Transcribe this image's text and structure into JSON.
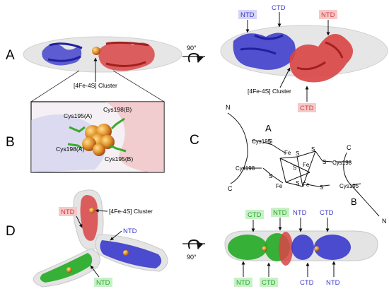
{
  "panels": {
    "A": {
      "letter": "A",
      "rotation": "90°",
      "cluster_left": "[4Fe-4S] Cluster",
      "cluster_right": "[4Fe-4S] Cluster",
      "ntd_left": "NTD",
      "ctd_top": "CTD",
      "ntd_right": "NTD",
      "ctd_bottom": "CTD"
    },
    "B": {
      "letter": "B",
      "cys195a": "Cys195(A)",
      "cys198b": "Cys198(B)",
      "cys198a": "Cys198(A)",
      "cys195b": "Cys195(B)"
    },
    "C": {
      "letter": "C",
      "chain_a": "A",
      "chain_b": "B",
      "n_top": "N",
      "c_left": "C",
      "c_right": "C",
      "n_bottom": "N",
      "cys195_top": "Cys195",
      "cys198_left": "Cys198",
      "cys198_right": "Cys198",
      "cys195_bottom": "Cys195",
      "fe": "Fe",
      "s": "S"
    },
    "D": {
      "letter": "D",
      "rotation": "90°",
      "ntd_red": "NTD",
      "cluster": "[4Fe-4S] Cluster",
      "ntd_blue": "NTD",
      "ntd_green": "NTD",
      "ctd_g1": "CTD",
      "ntd_g_top": "NTD",
      "ntd_b1": "NTD",
      "ctd_b1": "CTD",
      "ntd_g_bot": "NTD",
      "ctd_g_bot": "CTD",
      "ctd_b_bot": "CTD",
      "ntd_b_bot": "NTD"
    }
  },
  "colors": {
    "blue": "#3a3acc",
    "red": "#d43a3a",
    "green": "#22aa22",
    "red_hl": "#f6c9c9",
    "blue_hl": "#d5d5f5",
    "green_hl": "#c8f0c8"
  }
}
